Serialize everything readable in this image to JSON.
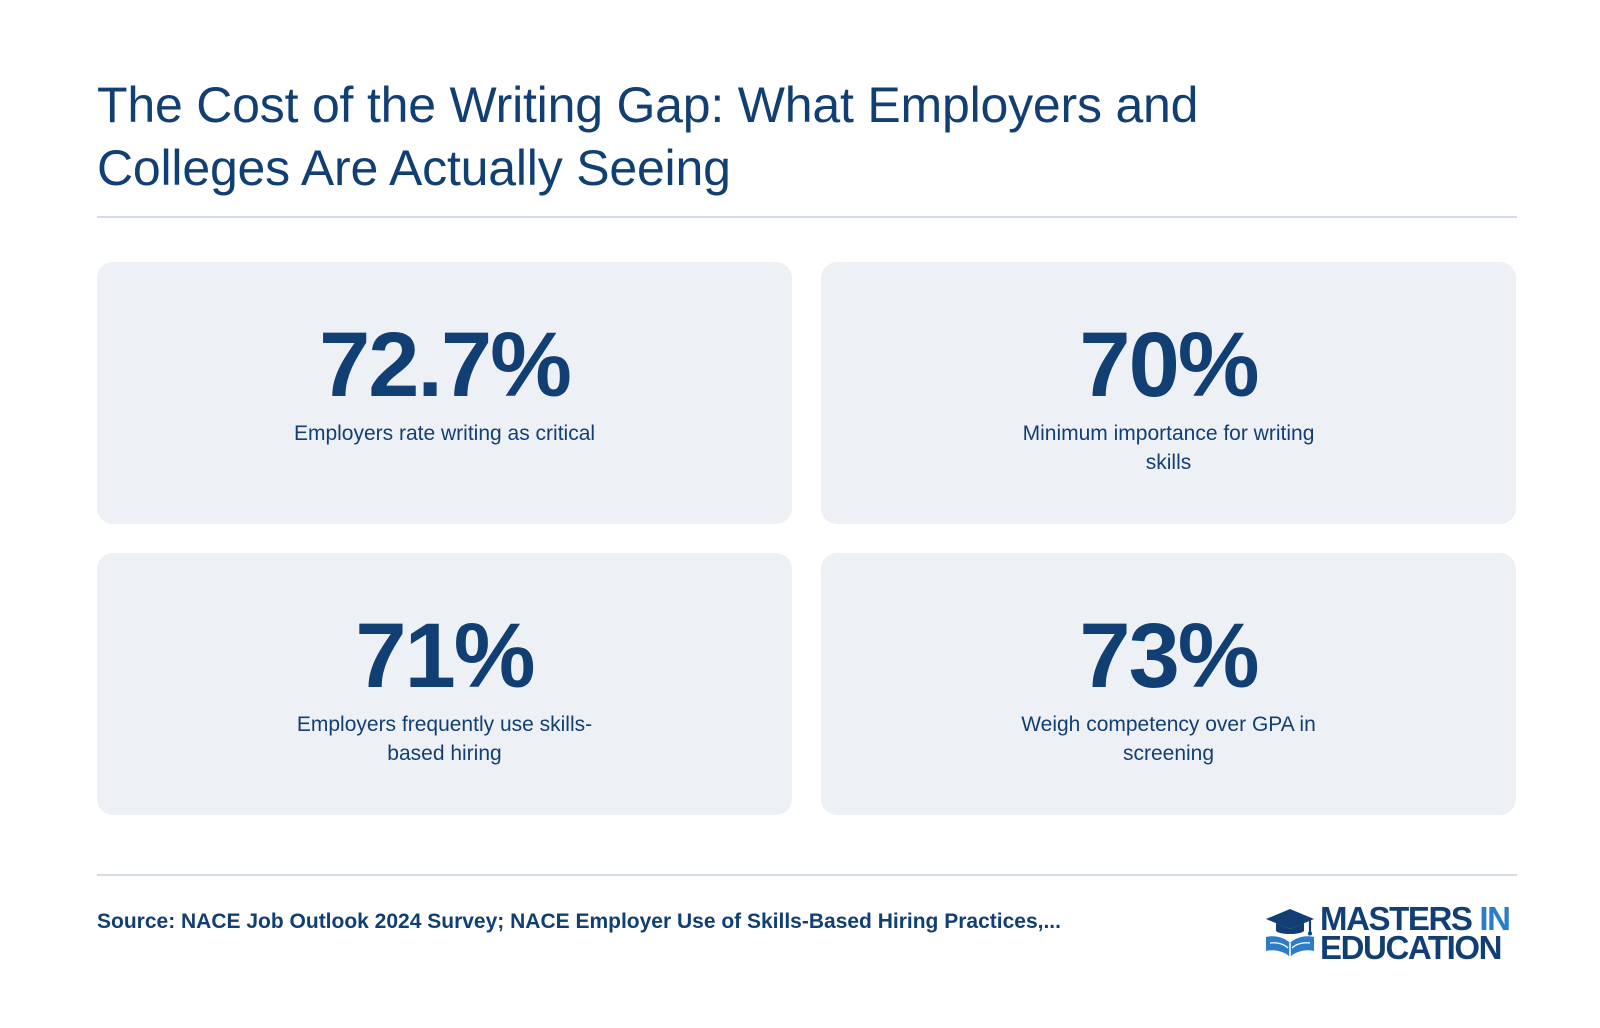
{
  "header": {
    "title": "The Cost of the Writing Gap: What Employers and Colleges Are Actually Seeing"
  },
  "stats": [
    {
      "value": "72.7%",
      "label": "Employers rate writing as critical"
    },
    {
      "value": "70%",
      "label": "Minimum importance for writing skills"
    },
    {
      "value": "71%",
      "label": "Employers frequently use skills-based hiring"
    },
    {
      "value": "73%",
      "label": "Weigh competency over GPA in screening"
    }
  ],
  "footer": {
    "source": "Source: NACE Job Outlook 2024 Survey; NACE Employer Use of Skills-Based Hiring Practices,...",
    "logo": {
      "icon": "graduation-cap-book-icon",
      "line1_word1": "MASTERS",
      "line1_word2": "IN",
      "line2": "EDUCATION",
      "primary_color": "#123f73",
      "accent_color": "#2c7cc9"
    }
  },
  "colors": {
    "text": "#123f73",
    "card_background": "#edf0f5",
    "divider": "#d3dce7"
  }
}
